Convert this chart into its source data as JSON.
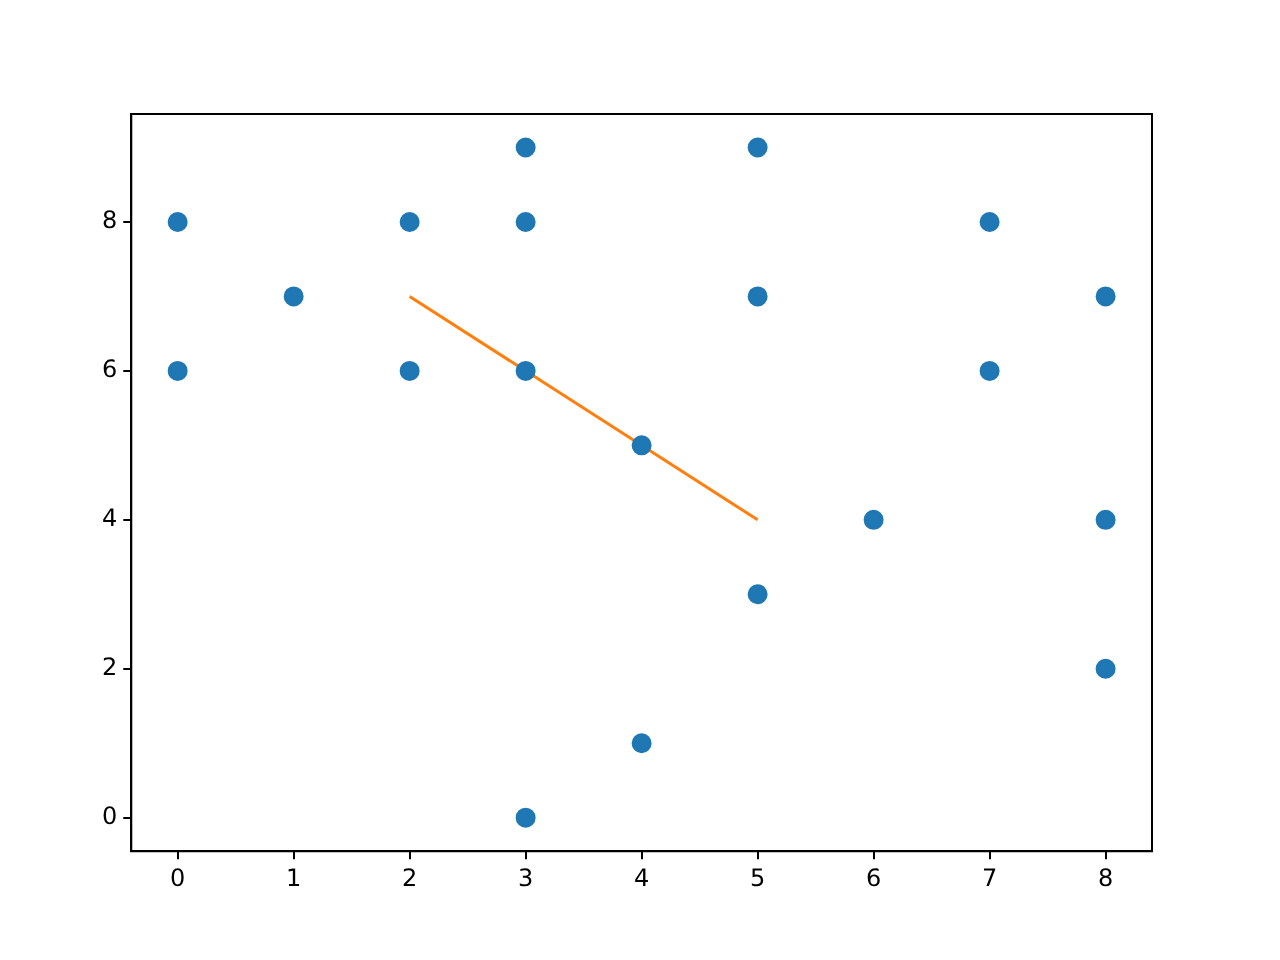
{
  "chart_data": {
    "type": "scatter",
    "marker": "circle",
    "grid": false,
    "legend": false,
    "xlim": [
      -0.4,
      8.4
    ],
    "xticks": [
      0,
      1,
      2,
      3,
      4,
      5,
      6,
      7,
      8
    ],
    "ylim": [
      -0.45,
      9.45
    ],
    "yticks": [
      0,
      2,
      4,
      6,
      8
    ],
    "series": [
      {
        "type": "scatter",
        "color": "#1f77b4",
        "x": [
          0,
          0,
          1,
          2,
          2,
          3,
          3,
          3,
          3,
          4,
          4,
          5,
          5,
          5,
          6,
          7,
          7,
          8,
          8,
          8
        ],
        "values": [
          8,
          6,
          7,
          8,
          6,
          9,
          8,
          6,
          0,
          5,
          1,
          9,
          7,
          3,
          4,
          8,
          6,
          7,
          4,
          2
        ]
      },
      {
        "type": "line",
        "color": "#ff7f0e",
        "marker": "none",
        "x": [
          2,
          5
        ],
        "values": [
          7,
          4
        ]
      }
    ]
  }
}
